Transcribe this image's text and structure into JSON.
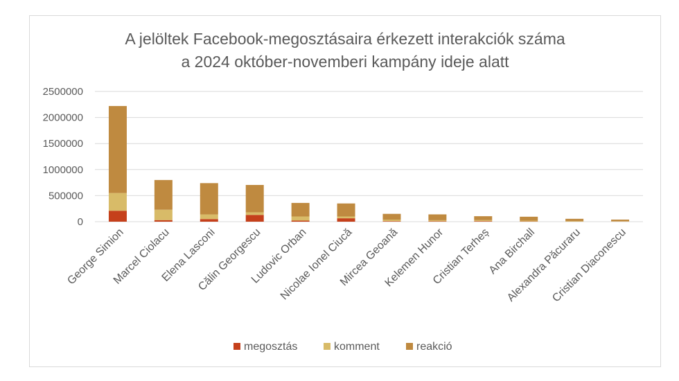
{
  "chart_data": {
    "type": "bar",
    "stacked": true,
    "title_lines": [
      "A jelöltek Facebook-megosztásaira érkezett interakciók száma",
      "a 2024 október-novemberi kampány ideje alatt"
    ],
    "categories": [
      "George Simion",
      "Marcel Ciolacu",
      "Elena Lasconi",
      "Călin Georgescu",
      "Ludovic Orban",
      "Nicolae Ionel Ciucă",
      "Mircea Geoană",
      "Kelemen Hunor",
      "Cristian Terheș",
      "Ana Birchall",
      "Alexandra Păcuraru",
      "Cristian Diaconescu"
    ],
    "series": [
      {
        "name": "megosztás",
        "color": "#c5401b",
        "values": [
          210000,
          30000,
          50000,
          130000,
          20000,
          65000,
          10000,
          8000,
          10000,
          5000,
          3000,
          3000
        ]
      },
      {
        "name": "komment",
        "color": "#d8bb68",
        "values": [
          340000,
          200000,
          90000,
          50000,
          80000,
          35000,
          30000,
          20000,
          20000,
          15000,
          10000,
          7000
        ]
      },
      {
        "name": "reakció",
        "color": "#bf8a40",
        "values": [
          1670000,
          570000,
          600000,
          525000,
          260000,
          250000,
          110000,
          112000,
          75000,
          75000,
          42000,
          30000
        ]
      }
    ],
    "ylim": [
      0,
      2500000
    ],
    "yticks": [
      0,
      500000,
      1000000,
      1500000,
      2000000,
      2500000
    ],
    "grid": true,
    "legend_position": "bottom"
  }
}
